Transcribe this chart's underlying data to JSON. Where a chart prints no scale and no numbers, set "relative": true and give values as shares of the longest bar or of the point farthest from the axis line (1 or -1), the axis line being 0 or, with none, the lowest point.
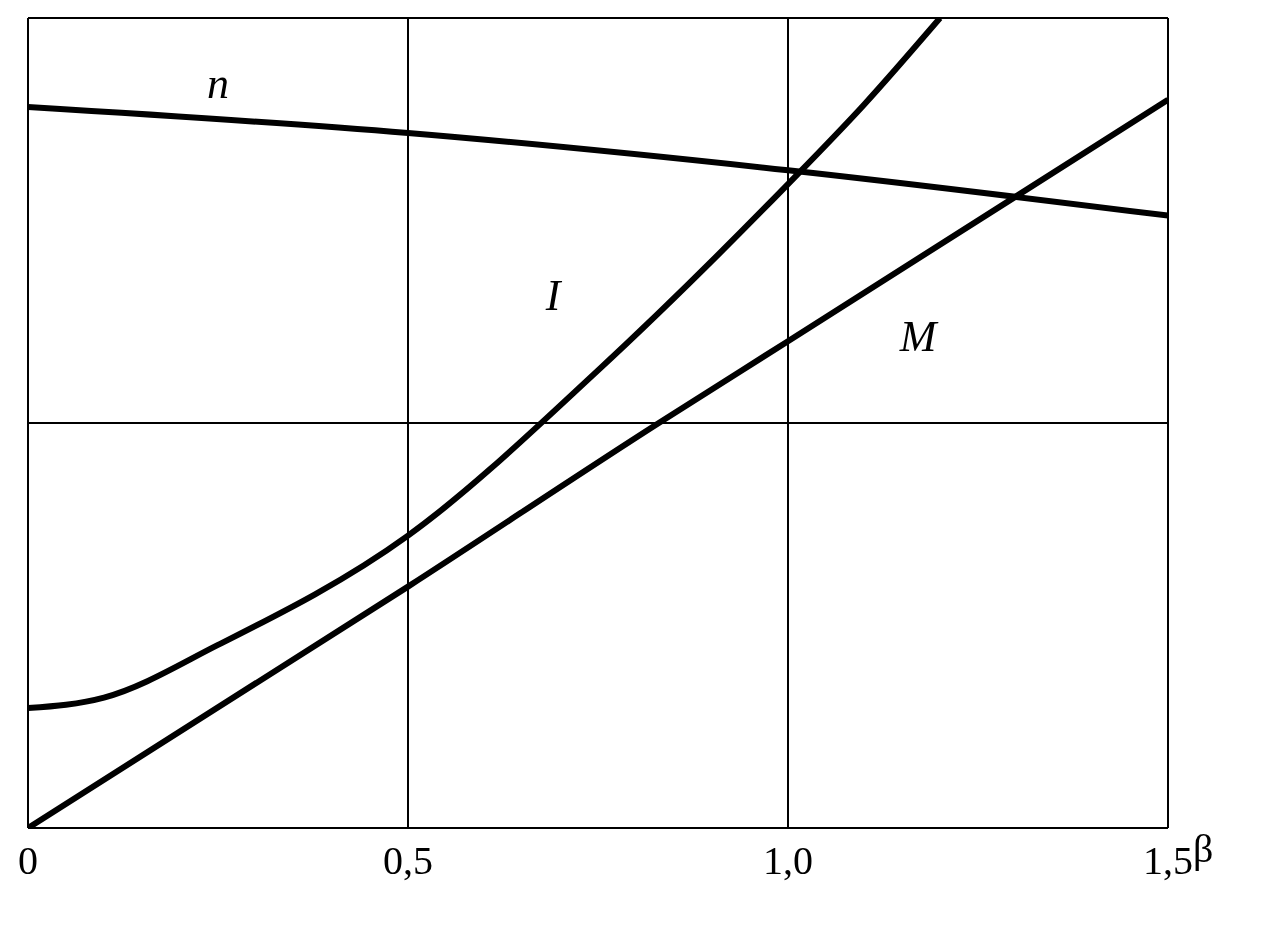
{
  "chart_data": {
    "type": "line",
    "xlabel": "β",
    "relative": true,
    "grid": true,
    "legend": false,
    "marker": "none",
    "line_style": "solid",
    "xlim": [
      0,
      1.5
    ],
    "xticks": [
      {
        "value": 0,
        "label": "0"
      },
      {
        "value": 0.5,
        "label": "0,5"
      },
      {
        "value": 1,
        "label": "1,0"
      },
      {
        "value": 1.5,
        "label": "1,5"
      }
    ],
    "series": [
      {
        "name": "n",
        "color": "#000000",
        "x": [
          0,
          0.5,
          1,
          1.5
        ],
        "values": [
          0.89,
          0.858,
          0.812,
          0.756
        ]
      },
      {
        "name": "I",
        "color": "#000000",
        "x": [
          0,
          0.1,
          0.25,
          0.5,
          0.75,
          1,
          1.1,
          1.2
        ],
        "values": [
          0.148,
          0.161,
          0.226,
          0.361,
          0.565,
          0.795,
          0.893,
          1
        ]
      },
      {
        "name": "M",
        "color": "#000000",
        "x": [
          0,
          0.5,
          0.83,
          1,
          1.5
        ],
        "values": [
          0,
          0.298,
          0.5,
          0.601,
          0.899
        ]
      }
    ]
  }
}
